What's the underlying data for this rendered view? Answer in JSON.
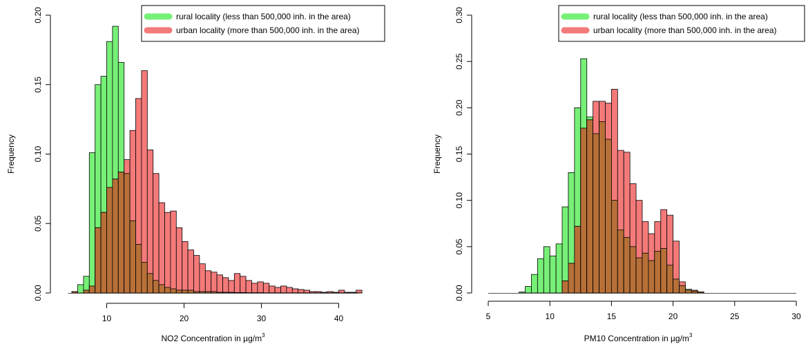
{
  "colors": {
    "rural": "#77f077",
    "urban": "#f47a7a",
    "overlap": "#b77038",
    "outline": "#000000"
  },
  "chart_data": [
    {
      "type": "bar",
      "subtype": "overlaid-histogram",
      "xlabel": "NO2 Concentration in µg/m³",
      "ylabel": "Frequency",
      "xlim": [
        5,
        42.5
      ],
      "ylim": [
        0,
        0.2
      ],
      "xticks": [
        10,
        20,
        30,
        40
      ],
      "yticks": [
        0.0,
        0.05,
        0.1,
        0.15,
        0.2
      ],
      "ytick_labels": [
        "0.00",
        "0.05",
        "0.10",
        "0.15",
        "0.20"
      ],
      "bin_start": 5.5,
      "bin_width": 0.75,
      "legend_placement": "top-right",
      "series": [
        {
          "name": "rural locality (less than 500,000 inh. in the area)",
          "values": [
            0.001,
            0.006,
            0.012,
            0.101,
            0.15,
            0.156,
            0.181,
            0.192,
            0.166,
            0.086,
            0.052,
            0.035,
            0.022,
            0.014,
            0.009,
            0.006,
            0.004,
            0.003,
            0.002,
            0.002,
            0.002,
            0.001,
            0.001,
            0.001,
            0.001,
            0.0005,
            0.0005,
            0.0005,
            0.0003,
            0.0003,
            0.0002,
            0.0002,
            0.0002,
            0.0001,
            0.0001,
            0.0001,
            0.0001,
            0.0001,
            0.0001,
            0.0001,
            0.0001,
            0.0001,
            0.0001,
            0.0001,
            0.0001,
            0.0001,
            0.0001,
            0.0001,
            0.0001,
            0.0001
          ]
        },
        {
          "name": "urban locality (more than 500,000 inh. in the area)",
          "values": [
            0.001,
            0.0,
            0.002,
            0.005,
            0.047,
            0.058,
            0.076,
            0.082,
            0.087,
            0.096,
            0.117,
            0.14,
            0.16,
            0.103,
            0.086,
            0.065,
            0.058,
            0.059,
            0.047,
            0.037,
            0.031,
            0.027,
            0.021,
            0.016,
            0.015,
            0.013,
            0.011,
            0.009,
            0.014,
            0.012,
            0.009,
            0.007,
            0.008,
            0.007,
            0.005,
            0.004,
            0.005,
            0.004,
            0.003,
            0.0025,
            0.002,
            0.001,
            0.001,
            0.0005,
            0.001,
            0.0005,
            0.002,
            0.0005,
            0.0005,
            0.002
          ]
        }
      ]
    },
    {
      "type": "bar",
      "subtype": "overlaid-histogram",
      "xlabel": "PM10 Concentration in µg/m³",
      "ylabel": "Frequency",
      "xlim": [
        5,
        30
      ],
      "ylim": [
        0,
        0.3
      ],
      "xticks": [
        5,
        10,
        15,
        20,
        25,
        30
      ],
      "yticks": [
        0.0,
        0.05,
        0.1,
        0.15,
        0.2,
        0.25,
        0.3
      ],
      "ytick_labels": [
        "0.00",
        "0.05",
        "0.10",
        "0.15",
        "0.20",
        "0.25",
        "0.30"
      ],
      "bin_start": 7.5,
      "bin_width": 0.5,
      "legend_placement": "top-right",
      "series": [
        {
          "name": "rural locality (less than 500,000 inh. in the area)",
          "values": [
            0.001,
            0.007,
            0.02,
            0.037,
            0.05,
            0.04,
            0.053,
            0.093,
            0.13,
            0.2,
            0.253,
            0.19,
            0.172,
            0.185,
            0.166,
            0.1,
            0.068,
            0.06,
            0.05,
            0.038,
            0.043,
            0.035,
            0.045,
            0.048,
            0.03,
            0.015,
            0.008,
            0.004,
            0.002,
            0.001
          ]
        },
        {
          "name": "urban locality (more than 500,000 inh. in the area)",
          "values": [
            0.0,
            0.0,
            0.0,
            0.0,
            0.0,
            0.0,
            0.0,
            0.013,
            0.032,
            0.072,
            0.178,
            0.187,
            0.207,
            0.207,
            0.205,
            0.22,
            0.154,
            0.152,
            0.118,
            0.1,
            0.077,
            0.064,
            0.077,
            0.09,
            0.084,
            0.056,
            0.012,
            0.003,
            0.003,
            0.001
          ]
        }
      ]
    }
  ]
}
